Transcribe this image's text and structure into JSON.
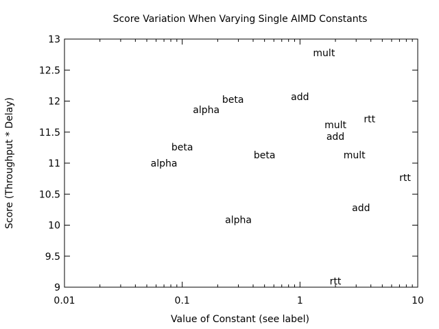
{
  "chart_data": {
    "type": "scatter",
    "title": "Score Variation When Varying Single AIMD Constants",
    "xlabel": "Value of Constant (see label)",
    "ylabel": "Score (Throughput * Delay)",
    "xscale": "log",
    "xlim": [
      0.01,
      10
    ],
    "ylim": [
      9,
      13
    ],
    "xticks": [
      "0.01",
      "0.1",
      "1",
      "10"
    ],
    "xtick_values": [
      0.01,
      0.1,
      1,
      10
    ],
    "yticks": [
      "9",
      "9.5",
      "10",
      "10.5",
      "11",
      "11.5",
      "12",
      "12.5",
      "13"
    ],
    "ytick_values": [
      9,
      9.5,
      10,
      10.5,
      11,
      11.5,
      12,
      12.5,
      13
    ],
    "grid": false,
    "legend": "none",
    "points": [
      {
        "label": "mult",
        "x": 1.6,
        "y": 12.78
      },
      {
        "label": "add",
        "x": 1.0,
        "y": 12.07
      },
      {
        "label": "beta",
        "x": 0.27,
        "y": 12.03
      },
      {
        "label": "alpha",
        "x": 0.16,
        "y": 11.86
      },
      {
        "label": "rtt",
        "x": 3.9,
        "y": 11.71
      },
      {
        "label": "mult",
        "x": 2.0,
        "y": 11.62
      },
      {
        "label": "add",
        "x": 2.0,
        "y": 11.43
      },
      {
        "label": "beta",
        "x": 0.1,
        "y": 11.26
      },
      {
        "label": "beta",
        "x": 0.5,
        "y": 11.13
      },
      {
        "label": "mult",
        "x": 2.9,
        "y": 11.13
      },
      {
        "label": "alpha",
        "x": 0.07,
        "y": 11.0
      },
      {
        "label": "rtt",
        "x": 7.8,
        "y": 10.77
      },
      {
        "label": "add",
        "x": 3.3,
        "y": 10.28
      },
      {
        "label": "alpha",
        "x": 0.3,
        "y": 10.09
      },
      {
        "label": "rtt",
        "x": 2.0,
        "y": 9.1
      }
    ]
  }
}
